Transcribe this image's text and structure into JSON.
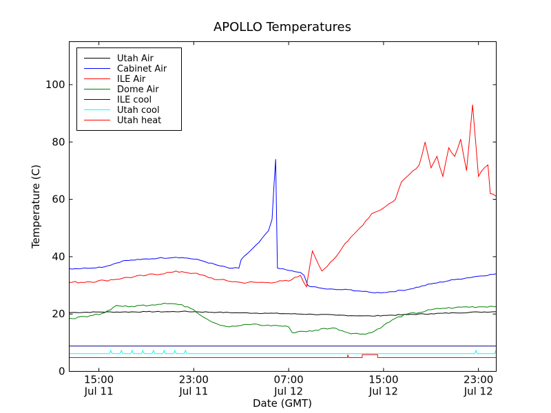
{
  "chart_data": {
    "type": "line",
    "title": "APOLLO Temperatures",
    "xlabel": "Date (GMT)",
    "ylabel": "Temperature (C)",
    "xlim": [
      12.5,
      48.5
    ],
    "ylim": [
      0,
      115
    ],
    "x_unit": "hours since Jul 11 00:00 GMT",
    "grid": false,
    "legend_position": "top-left",
    "yticks": [
      {
        "value": 0,
        "label": "0"
      },
      {
        "value": 20,
        "label": "20"
      },
      {
        "value": 40,
        "label": "40"
      },
      {
        "value": 60,
        "label": "60"
      },
      {
        "value": 80,
        "label": "80"
      },
      {
        "value": 100,
        "label": "100"
      }
    ],
    "xticks": [
      {
        "value": 15,
        "time": "15:00",
        "date": "Jul 11"
      },
      {
        "value": 23,
        "time": "23:00",
        "date": "Jul 11"
      },
      {
        "value": 31,
        "time": "07:00",
        "date": "Jul 12"
      },
      {
        "value": 39,
        "time": "15:00",
        "date": "Jul 12"
      },
      {
        "value": 47,
        "time": "23:00",
        "date": "Jul 12"
      }
    ],
    "series": [
      {
        "name": "Utah Air",
        "color": "#000000",
        "x": [
          12.5,
          15,
          17,
          19,
          21,
          22,
          23,
          25,
          27,
          29,
          31,
          33,
          35,
          37,
          38,
          39,
          41,
          43,
          45,
          47,
          48.5
        ],
        "y": [
          20.5,
          20.7,
          20.7,
          20.8,
          20.8,
          20.9,
          20.8,
          20.6,
          20.4,
          20.3,
          20.1,
          19.9,
          19.6,
          19.4,
          19.3,
          19.5,
          19.8,
          20.1,
          20.4,
          20.7,
          20.8
        ]
      },
      {
        "name": "Cabinet Air",
        "color": "#0000ff",
        "x": [
          12.5,
          14,
          15.5,
          17,
          18.5,
          20,
          21.5,
          22.5,
          23.5,
          25,
          26,
          26.8,
          27,
          27.5,
          28.5,
          29.3,
          29.6,
          29.75,
          29.9,
          30.05,
          31,
          31.5,
          32,
          32.3,
          32.6,
          33,
          34,
          35,
          36,
          37,
          38,
          39,
          41,
          43,
          45,
          47,
          48.5
        ],
        "y": [
          35.8,
          36,
          36.5,
          38.5,
          39,
          39.5,
          39.8,
          39.5,
          38.8,
          37,
          36,
          36,
          39,
          41,
          45,
          49,
          53,
          64,
          74,
          36,
          35.2,
          34.8,
          34.5,
          33.5,
          30,
          29.5,
          28.8,
          28.5,
          28.5,
          28,
          27.5,
          27.5,
          28.5,
          30.5,
          32,
          33.2,
          34
        ]
      },
      {
        "name": "ILE Air",
        "color": "#ff0000",
        "x": [
          12.5,
          14,
          15.5,
          17,
          19,
          21,
          22,
          23,
          25,
          27,
          29,
          31,
          32,
          32.5,
          33,
          33.8,
          34.5,
          35,
          35.5,
          36,
          37,
          38,
          39,
          40,
          40.5,
          41,
          41.5,
          42,
          42.5,
          43,
          43.5,
          44,
          44.5,
          45,
          45.5,
          46,
          46.5,
          47,
          47.5,
          47.8,
          48,
          48.5
        ],
        "y": [
          31,
          31.2,
          31.7,
          32.5,
          33.5,
          34.5,
          34.8,
          34.2,
          32,
          31,
          31,
          31.5,
          33.5,
          29.5,
          42,
          35,
          38,
          40,
          43,
          45.5,
          50,
          55,
          57,
          60,
          66,
          68,
          70,
          72,
          80,
          71,
          75,
          68,
          78,
          75,
          81,
          70,
          93,
          68,
          71,
          72,
          62,
          61
        ]
      },
      {
        "name": "Dome Air",
        "color": "#008000",
        "x": [
          12.5,
          14,
          15.5,
          16.5,
          17.5,
          18.5,
          19.5,
          20.5,
          21.5,
          22.5,
          23,
          24,
          25,
          26,
          27,
          28,
          29,
          30,
          31,
          31.3,
          32,
          33,
          34,
          35,
          36,
          37,
          38,
          39,
          40,
          41,
          42,
          43,
          44,
          45,
          46,
          47,
          48,
          48.5
        ],
        "y": [
          18.5,
          19,
          20.5,
          23,
          22.5,
          23,
          23.2,
          23.8,
          23.5,
          22.5,
          21.5,
          18.5,
          16.5,
          15.5,
          16,
          16.5,
          16,
          16,
          15.5,
          13.5,
          14,
          14,
          15,
          15,
          13.5,
          13,
          13.5,
          16,
          18.5,
          20,
          20.5,
          21.5,
          22,
          22.2,
          22.5,
          22.5,
          22.7,
          22.5
        ]
      },
      {
        "name": "ILE cool",
        "color": "#000080",
        "x": [
          12.5,
          48.5
        ],
        "y": [
          8.8,
          8.8
        ]
      },
      {
        "name": "Utah cool",
        "color": "#00ffff",
        "x": [
          12.5,
          15.9,
          16,
          16.1,
          16.8,
          16.9,
          17,
          17.7,
          17.8,
          17.9,
          18.6,
          18.7,
          18.8,
          19.5,
          19.6,
          19.7,
          20.4,
          20.5,
          20.6,
          21.3,
          21.4,
          21.5,
          22.2,
          22.3,
          22.4,
          46.7,
          46.8,
          46.9,
          48.4,
          48.45,
          48.5
        ],
        "y": [
          6.2,
          6.2,
          7.3,
          6.2,
          6.2,
          7.3,
          6.2,
          6.2,
          7.3,
          6.2,
          6.2,
          7.3,
          6.2,
          6.2,
          7.3,
          6.2,
          6.2,
          7.3,
          6.2,
          6.2,
          7.3,
          6.2,
          6.2,
          7.3,
          6.2,
          6.2,
          7.3,
          6.2,
          6.2,
          7.3,
          6.2
        ]
      },
      {
        "name": "Utah heat",
        "color": "#ff0000",
        "x": [
          12.5,
          35.95,
          36,
          36.05,
          36.4,
          37.2,
          37.2,
          38.5,
          38.5,
          48.5
        ],
        "y": [
          4.8,
          4.8,
          5.8,
          4.8,
          4.8,
          4.8,
          5.8,
          5.8,
          4.8,
          4.8
        ]
      }
    ]
  }
}
